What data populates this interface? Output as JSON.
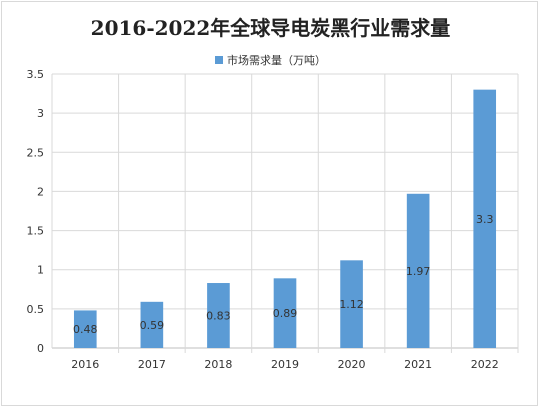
{
  "chart_data": {
    "type": "bar",
    "title": "2016-2022年全球导电炭黑行业需求量",
    "categories": [
      "2016",
      "2017",
      "2018",
      "2019",
      "2020",
      "2021",
      "2022"
    ],
    "series": [
      {
        "name": "市场需求量（万吨）",
        "values": [
          0.48,
          0.59,
          0.83,
          0.89,
          1.12,
          1.97,
          3.3
        ],
        "color": "#5b9bd5"
      }
    ],
    "data_labels": [
      "0.48",
      "0.59",
      "0.83",
      "0.89",
      "1.12",
      "1.97",
      "3.3"
    ],
    "yticks": [
      "0",
      "0.5",
      "1",
      "1.5",
      "2",
      "2.5",
      "3",
      "3.5"
    ],
    "ylim": [
      0,
      3.5
    ],
    "xlabel": "",
    "ylabel": "",
    "grid": true,
    "legend_position": "top"
  },
  "colors": {
    "bar": "#5b9bd5",
    "grid": "#d9d9d9",
    "axis": "#bfbfbf"
  }
}
